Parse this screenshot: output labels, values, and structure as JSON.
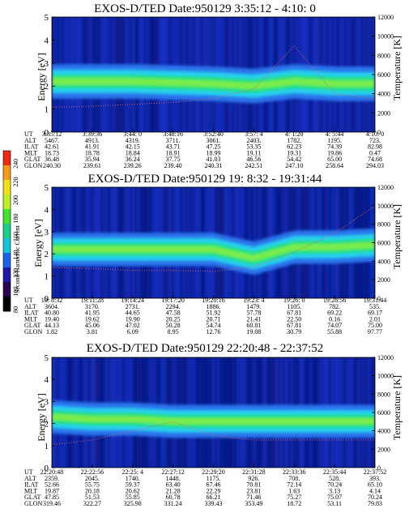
{
  "colors": {
    "background": "#0b1b8e",
    "levels": [
      "#05093b",
      "#0a1a8a",
      "#1732c8",
      "#2a78f0",
      "#27d4ee",
      "#23e07a",
      "#8ef03a",
      "#f4f020",
      "#f7a51c",
      "#ee2b14"
    ],
    "colorbar": [
      "#000000",
      "#2a0050",
      "#1d1aa8",
      "#1d62e8",
      "#18c4d8",
      "#18d088",
      "#46e030",
      "#bef024",
      "#f6e01c",
      "#f59a1a",
      "#ee2a14"
    ]
  },
  "colorbar": {
    "label": "Second Harmonic Current",
    "ticks": [
      "80",
      "100",
      "120",
      "140",
      "160",
      "180",
      "200",
      "220",
      "240"
    ]
  },
  "panels": [
    {
      "title": "EXOS-D/TED   Date:950129  3:35:12 - 4:10: 0",
      "ephemeris": {
        "labels": [
          "UT",
          "ALT",
          "ILAT",
          "MLT",
          "GLAT",
          "GLON"
        ],
        "columns": [
          [
            "3:35:12",
            "5467.",
            "42.61",
            "18.73",
            "36.48",
            "240.30"
          ],
          [
            "3:39:36",
            "4913.",
            "41.91",
            "18.78",
            "35.94",
            "239.61"
          ],
          [
            "3:44: 0",
            "4319.",
            "42.15",
            "18.84",
            "36.24",
            "239.26"
          ],
          [
            "3:48:16",
            "3711.",
            "43.71",
            "18.91",
            "37.75",
            "239.40"
          ],
          [
            "3:52:40",
            "3061.",
            "47.25",
            "18.99",
            "41.03",
            "240.31"
          ],
          [
            "3:57: 4",
            "2403.",
            "53.35",
            "19.11",
            "46.56",
            "242.51"
          ],
          [
            "4: 1:20",
            "1782.",
            "62.23",
            "19.31",
            "54.42",
            "247.10"
          ],
          [
            "4: 5:44",
            "1195.",
            "74.39",
            "19.86",
            "65.00",
            "258.64"
          ],
          [
            "4:10: 0",
            "723.",
            "82.98",
            "0.47",
            "74.68",
            "294.03"
          ]
        ]
      }
    },
    {
      "title": "EXOS-D/TED   Date:950129  19: 8:32 - 19:31:44",
      "ephemeris": {
        "labels": [
          "UT",
          "ALT",
          "ILAT",
          "MLT",
          "GLAT",
          "GLON"
        ],
        "columns": [
          [
            "19: 8:32",
            "3604.",
            "40.80",
            "19.40",
            "44.13",
            "1.82"
          ],
          [
            "19:11:28",
            "3170.",
            "41.95",
            "19.62",
            "45.06",
            "3.81"
          ],
          [
            "19:14:24",
            "2731.",
            "44.65",
            "19.90",
            "47.02",
            "6.09"
          ],
          [
            "19:17:20",
            "2294.",
            "47.58",
            "20.25",
            "50.28",
            "8.95"
          ],
          [
            "19:20:16",
            "1886.",
            "51.92",
            "20.71",
            "54.74",
            "12.76"
          ],
          [
            "19:23: 4",
            "1479.",
            "57.78",
            "21.41",
            "60.81",
            "19.08"
          ],
          [
            "19:26: 0",
            "1105.",
            "67.81",
            "22.50",
            "67.81",
            "30.79"
          ],
          [
            "19:28:56",
            "782.",
            "69.22",
            "0.16",
            "74.07",
            "55.88"
          ],
          [
            "19:31:44",
            "535.",
            "69.17",
            "2.01",
            "75.00",
            "97.77"
          ]
        ]
      }
    },
    {
      "title": "EXOS-D/TED   Date:950129  22:20:48 - 22:37:52",
      "ephemeris": {
        "labels": [
          "UT",
          "ALT",
          "ILAT",
          "MLT",
          "GLAT",
          "GLON"
        ],
        "columns": [
          [
            "22:20:48",
            "2359.",
            "52.66",
            "19.87",
            "47.85",
            "319.46"
          ],
          [
            "22:22:56",
            "2045.",
            "55.75",
            "20.18",
            "51.53",
            "322.27"
          ],
          [
            "22:25: 4",
            "1740.",
            "59.37",
            "20.62",
            "55.85",
            "325.98"
          ],
          [
            "22:27:12",
            "1448.",
            "63.40",
            "21.28",
            "60.78",
            "331.24"
          ],
          [
            "22:29:20",
            "1175.",
            "67.46",
            "22.29",
            "66.21",
            "339.43"
          ],
          [
            "22:31:28",
            "926.",
            "70.81",
            "23.81",
            "71.46",
            "353.49"
          ],
          [
            "22:33:36",
            "708.",
            "72.14",
            "1.63",
            "75.27",
            "18.72"
          ],
          [
            "22:35:44",
            "528.",
            "70.24",
            "3.13",
            "75.07",
            "53.11"
          ],
          [
            "22:37:52",
            "393.",
            "65.10",
            "4.14",
            "70.24",
            "79.83"
          ]
        ]
      }
    }
  ],
  "chart_data": [
    {
      "type": "heatmap",
      "title": "EXOS-D/TED   Date:950129  3:35:12 - 4:10: 0",
      "ylabel": "Energy [eV]",
      "y2label": "Temperature [K]",
      "ylim": [
        0,
        5
      ],
      "y2lim": [
        0,
        12000
      ],
      "yticks": [
        "0",
        "1",
        "2",
        "3",
        "4",
        "5"
      ],
      "y2ticks": [
        "0",
        "2000",
        "4000",
        "6000",
        "8000",
        "10000",
        "12000"
      ],
      "x": [
        "3:35:12",
        "3:39:36",
        "3:44: 0",
        "3:48:16",
        "3:52:40",
        "3:57: 4",
        "4: 1:20",
        "4: 5:44",
        "4:10: 0"
      ],
      "band_center_eV": [
        2.2,
        2.2,
        2.2,
        2.15,
        2.1,
        2.0,
        2.2,
        2.1,
        2.1
      ],
      "temperature_K": [
        2600,
        2700,
        2900,
        3100,
        3500,
        4500,
        9000,
        4000,
        3500
      ]
    },
    {
      "type": "heatmap",
      "title": "EXOS-D/TED   Date:950129  19: 8:32 - 19:31:44",
      "ylabel": "Energy [eV]",
      "y2label": "Temperature [K]",
      "ylim": [
        0,
        5
      ],
      "y2lim": [
        0,
        12000
      ],
      "yticks": [
        "0",
        "1",
        "2",
        "3",
        "4",
        "5"
      ],
      "y2ticks": [
        "0",
        "2000",
        "4000",
        "6000",
        "8000",
        "10000",
        "12000"
      ],
      "x": [
        "19: 8:32",
        "19:11:28",
        "19:14:24",
        "19:17:20",
        "19:20:16",
        "19:23: 4",
        "19:26: 0",
        "19:28:56",
        "19:31:44"
      ],
      "band_center_eV": [
        2.2,
        2.2,
        2.2,
        2.2,
        2.2,
        1.8,
        2.3,
        2.3,
        2.4
      ],
      "temperature_K": [
        3300,
        3200,
        3000,
        3000,
        2900,
        3400,
        5000,
        7000,
        10000
      ]
    },
    {
      "type": "heatmap",
      "title": "EXOS-D/TED   Date:950129  22:20:48 - 22:37:52",
      "ylabel": "Energy [eV]",
      "y2label": "Temperature [K]",
      "ylim": [
        0,
        5
      ],
      "y2lim": [
        0,
        12000
      ],
      "yticks": [
        "0",
        "1",
        "2",
        "3",
        "4",
        "5"
      ],
      "y2ticks": [
        "0",
        "2000",
        "4000",
        "6000",
        "8000",
        "10000",
        "12000"
      ],
      "x": [
        "22:20:48",
        "22:22:56",
        "22:25: 4",
        "22:27:12",
        "22:29:20",
        "22:31:28",
        "22:33:36",
        "22:35:44",
        "22:37:52"
      ],
      "band_center_eV": [
        2.3,
        2.2,
        2.2,
        2.1,
        2.1,
        2.1,
        2.1,
        2.1,
        2.1
      ],
      "temperature_K": [
        2500,
        3000,
        4000,
        5000,
        3500,
        3000,
        3000,
        3000,
        3000
      ]
    }
  ]
}
